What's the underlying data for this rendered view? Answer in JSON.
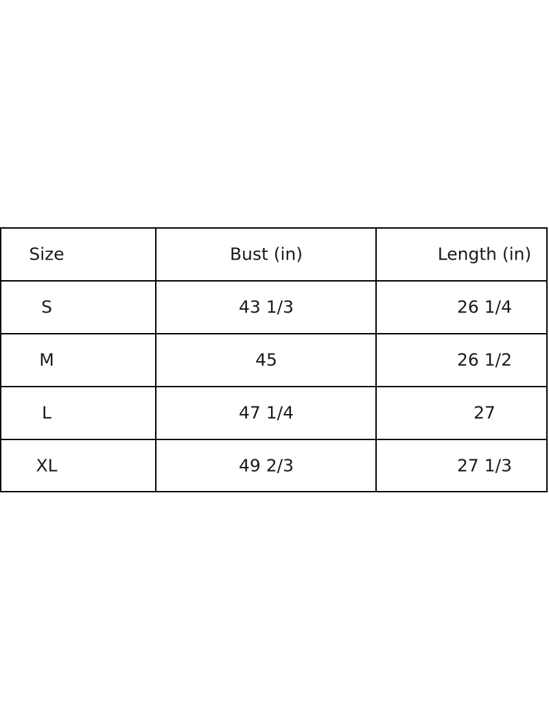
{
  "page": {
    "background_color": "#ffffff"
  },
  "table": {
    "border_color": "#000000",
    "text_color": "#1a1a1a",
    "headers": [
      "Size",
      "Bust (in)",
      "Length (in)"
    ],
    "rows": [
      [
        "S",
        "43 1/3",
        "26 1/4"
      ],
      [
        "M",
        "45",
        "26 1/2"
      ],
      [
        "L",
        "47 1/4",
        "27"
      ],
      [
        "XL",
        "49 2/3",
        "27 1/3"
      ]
    ]
  },
  "chart_data": {
    "type": "table",
    "title": "",
    "columns": [
      "Size",
      "Bust (in)",
      "Length (in)"
    ],
    "rows": [
      [
        "S",
        "43 1/3",
        "26 1/4"
      ],
      [
        "M",
        "45",
        "26 1/2"
      ],
      [
        "L",
        "47 1/4",
        "27"
      ],
      [
        "XL",
        "49 2/3",
        "27 1/3"
      ]
    ],
    "sizes": [
      "S",
      "M",
      "L",
      "XL"
    ],
    "bust_in_numeric": [
      43.333,
      45,
      47.25,
      49.667
    ],
    "length_in_numeric": [
      26.25,
      26.5,
      27,
      27.333
    ],
    "layout": {
      "grid": "on",
      "header_row": true,
      "cell_text_align": "center"
    }
  }
}
